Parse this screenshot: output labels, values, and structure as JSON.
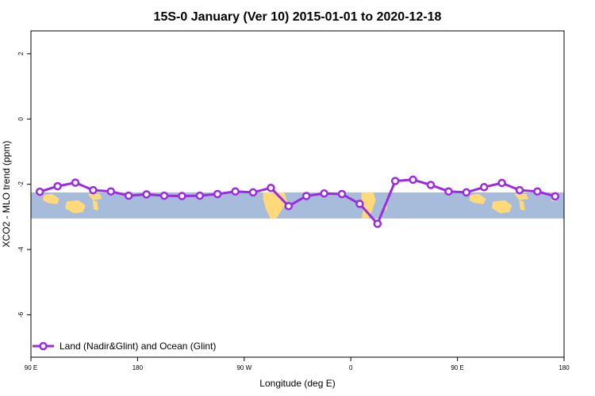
{
  "chart_data": {
    "type": "line",
    "title": "15S-0 January (Ver 10)   2015-01-01 to 2020-12-18",
    "xlabel": "Longitude (deg E)",
    "ylabel": "XCO2 - MLO trend (ppm)",
    "xlim": [
      90,
      540
    ],
    "ylim": [
      -7.3,
      2.7
    ],
    "x_ticks": [
      {
        "value": 90,
        "label": "90 E"
      },
      {
        "value": 180,
        "label": "180"
      },
      {
        "value": 270,
        "label": "90 W"
      },
      {
        "value": 360,
        "label": "0"
      },
      {
        "value": 450,
        "label": "90 E"
      },
      {
        "value": 540,
        "label": "180"
      }
    ],
    "y_ticks": [
      {
        "value": 2,
        "label": "2"
      },
      {
        "value": 0,
        "label": "0"
      },
      {
        "value": -2,
        "label": "-2"
      },
      {
        "value": -4,
        "label": "-4"
      },
      {
        "value": -6,
        "label": "-6"
      }
    ],
    "map_band": {
      "lat_range": [
        -15,
        0
      ],
      "y_range": [
        -3.05,
        -2.25
      ],
      "ocean_color": "#A7BCDA",
      "land_color": "#FFD97A"
    },
    "series": [
      {
        "name": "Land (Nadir&Glint) and Ocean (Glint)",
        "color": "#9A2BE2",
        "x": [
          97.5,
          112.5,
          127.5,
          142.5,
          157.5,
          172.5,
          187.5,
          202.5,
          217.5,
          232.5,
          247.5,
          262.5,
          277.5,
          292.5,
          307.5,
          322.5,
          337.5,
          352.5,
          367.5,
          382.5,
          397.5,
          412.5,
          427.5,
          442.5,
          457.5,
          472.5,
          487.5,
          502.5,
          517.5,
          532.5
        ],
        "values": [
          -2.23,
          -2.06,
          -1.95,
          -2.18,
          -2.22,
          -2.35,
          -2.31,
          -2.35,
          -2.36,
          -2.35,
          -2.3,
          -2.22,
          -2.25,
          -2.11,
          -2.67,
          -2.36,
          -2.28,
          -2.3,
          -2.6,
          -3.21,
          -1.9,
          -1.86,
          -2.02,
          -2.22,
          -2.25,
          -2.09,
          -1.96,
          -2.18,
          -2.22,
          -2.37
        ]
      }
    ],
    "legend": {
      "position": "bottom-left"
    }
  }
}
